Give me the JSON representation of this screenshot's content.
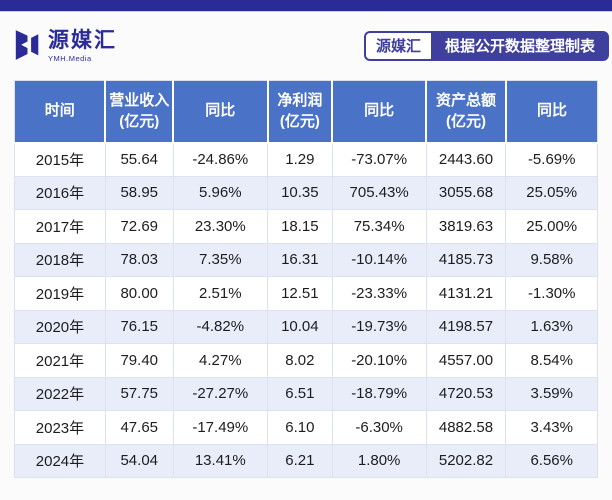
{
  "page": {
    "topbar_color": "#2b2b97",
    "background": "#fbfbfc"
  },
  "brand": {
    "name": "源媒汇",
    "subtitle": "YMH.Media",
    "color": "#2b2b97"
  },
  "badge": {
    "source_label": "源媒汇",
    "note_label": "根据公开数据整理制表",
    "color": "#3f3f9e"
  },
  "table": {
    "header_bg": "#4a72c6",
    "alt_row_bg": "#e9edf9"
  },
  "chart_data": {
    "type": "table",
    "columns": [
      "时间",
      "营业收入\n(亿元)",
      "同比",
      "净利润\n(亿元)",
      "同比",
      "资产总额\n(亿元)",
      "同比"
    ],
    "rows": [
      [
        "2015年",
        "55.64",
        "-24.86%",
        "1.29",
        "-73.07%",
        "2443.60",
        "-5.69%"
      ],
      [
        "2016年",
        "58.95",
        "5.96%",
        "10.35",
        "705.43%",
        "3055.68",
        "25.05%"
      ],
      [
        "2017年",
        "72.69",
        "23.30%",
        "18.15",
        "75.34%",
        "3819.63",
        "25.00%"
      ],
      [
        "2018年",
        "78.03",
        "7.35%",
        "16.31",
        "-10.14%",
        "4185.73",
        "9.58%"
      ],
      [
        "2019年",
        "80.00",
        "2.51%",
        "12.51",
        "-23.33%",
        "4131.21",
        "-1.30%"
      ],
      [
        "2020年",
        "76.15",
        "-4.82%",
        "10.04",
        "-19.73%",
        "4198.57",
        "1.63%"
      ],
      [
        "2021年",
        "79.40",
        "4.27%",
        "8.02",
        "-20.10%",
        "4557.00",
        "8.54%"
      ],
      [
        "2022年",
        "57.75",
        "-27.27%",
        "6.51",
        "-18.79%",
        "4720.53",
        "3.59%"
      ],
      [
        "2023年",
        "47.65",
        "-17.49%",
        "6.10",
        "-6.30%",
        "4882.58",
        "3.43%"
      ],
      [
        "2024年",
        "54.04",
        "13.41%",
        "6.21",
        "1.80%",
        "5202.82",
        "6.56%"
      ]
    ]
  }
}
